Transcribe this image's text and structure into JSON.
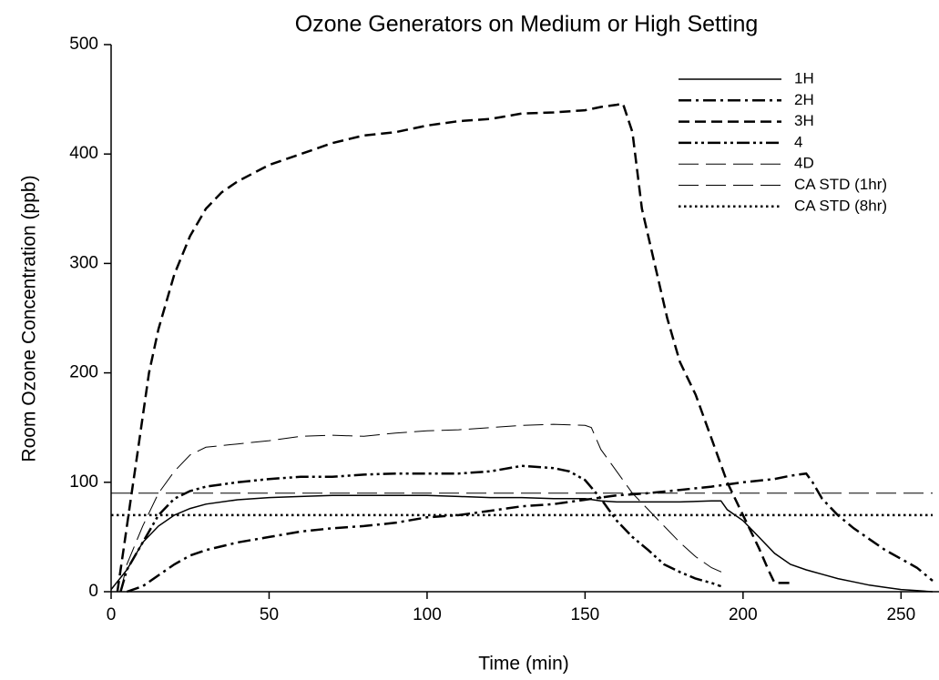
{
  "chart_data": {
    "type": "line",
    "title": "Ozone Generators on Medium or High Setting",
    "x_label": "Time (min)",
    "y_label": "Room Ozone Concentration (ppb)",
    "xlim": [
      0,
      260
    ],
    "ylim": [
      0,
      500
    ],
    "xticks": [
      0,
      50,
      100,
      150,
      200,
      250
    ],
    "yticks": [
      0,
      100,
      200,
      300,
      400,
      500
    ],
    "grid": false,
    "legend": "upper right",
    "series": [
      {
        "name": "1H",
        "color": "#000000",
        "dash": "solid",
        "width": 1.5,
        "x": [
          0,
          5,
          10,
          15,
          20,
          25,
          30,
          40,
          50,
          60,
          70,
          80,
          90,
          100,
          110,
          120,
          130,
          140,
          150,
          155,
          160,
          170,
          180,
          190,
          193,
          195,
          200,
          205,
          210,
          215,
          220,
          225,
          230,
          235,
          240,
          245,
          250,
          255,
          260
        ],
        "values": [
          2,
          20,
          45,
          60,
          70,
          76,
          80,
          84,
          86,
          87,
          88,
          88,
          88,
          88,
          87,
          86,
          86,
          85,
          85,
          83,
          82,
          82,
          82,
          83,
          83,
          75,
          65,
          50,
          35,
          25,
          20,
          16,
          12,
          9,
          6,
          4,
          2,
          1,
          0
        ]
      },
      {
        "name": "2H",
        "color": "#000000",
        "dash": "dashdot",
        "width": 2.5,
        "x": [
          5,
          10,
          15,
          20,
          25,
          30,
          40,
          50,
          60,
          70,
          80,
          90,
          100,
          110,
          120,
          130,
          140,
          150,
          155,
          160,
          170,
          180,
          190,
          200,
          210,
          215,
          220,
          222,
          225,
          230,
          235,
          240,
          245,
          250,
          255,
          260
        ],
        "values": [
          0,
          5,
          15,
          25,
          33,
          38,
          45,
          50,
          55,
          58,
          60,
          63,
          68,
          70,
          74,
          78,
          80,
          84,
          86,
          88,
          90,
          93,
          96,
          100,
          103,
          106,
          108,
          100,
          85,
          70,
          58,
          48,
          38,
          30,
          22,
          10
        ]
      },
      {
        "name": "3H",
        "color": "#000000",
        "dash": "dash",
        "width": 2.5,
        "x": [
          2,
          4,
          6,
          8,
          10,
          12,
          15,
          20,
          25,
          30,
          35,
          40,
          50,
          60,
          70,
          80,
          90,
          100,
          110,
          120,
          130,
          140,
          150,
          155,
          160,
          162,
          165,
          168,
          172,
          176,
          180,
          185,
          190,
          195,
          200,
          205,
          208,
          210,
          215
        ],
        "values": [
          0,
          40,
          80,
          120,
          160,
          200,
          240,
          290,
          325,
          350,
          365,
          375,
          390,
          400,
          410,
          417,
          420,
          426,
          430,
          432,
          437,
          438,
          440,
          443,
          445,
          446,
          420,
          350,
          300,
          250,
          210,
          180,
          140,
          100,
          70,
          40,
          20,
          8,
          8
        ]
      },
      {
        "name": "4",
        "color": "#000000",
        "dash": "dashdotdot",
        "width": 2.5,
        "x": [
          3,
          5,
          10,
          15,
          20,
          25,
          30,
          40,
          50,
          60,
          70,
          80,
          90,
          100,
          110,
          120,
          130,
          140,
          145,
          150,
          155,
          160,
          165,
          170,
          175,
          180,
          185,
          190,
          193
        ],
        "values": [
          0,
          20,
          45,
          70,
          85,
          92,
          96,
          100,
          103,
          105,
          105,
          107,
          108,
          108,
          108,
          110,
          115,
          113,
          110,
          102,
          85,
          65,
          50,
          38,
          25,
          18,
          12,
          8,
          5
        ]
      },
      {
        "name": "4D",
        "color": "#000000",
        "dash": "longdash",
        "width": 1,
        "x": [
          3,
          5,
          10,
          15,
          20,
          25,
          30,
          40,
          50,
          60,
          70,
          80,
          90,
          100,
          110,
          120,
          130,
          140,
          150,
          152,
          155,
          160,
          165,
          170,
          175,
          180,
          185,
          190,
          194
        ],
        "values": [
          0,
          25,
          60,
          90,
          110,
          125,
          132,
          135,
          138,
          142,
          143,
          142,
          145,
          147,
          148,
          150,
          152,
          153,
          152,
          150,
          130,
          110,
          90,
          75,
          60,
          45,
          32,
          22,
          17
        ]
      },
      {
        "name": "CA STD (1hr)",
        "color": "#000000",
        "dash": "longdash",
        "width": 1,
        "x": [
          0,
          260
        ],
        "values": [
          90,
          90
        ]
      },
      {
        "name": "CA STD (8hr)",
        "color": "#000000",
        "dash": "dot",
        "width": 2.5,
        "x": [
          0,
          260
        ],
        "values": [
          70,
          70
        ]
      }
    ]
  }
}
